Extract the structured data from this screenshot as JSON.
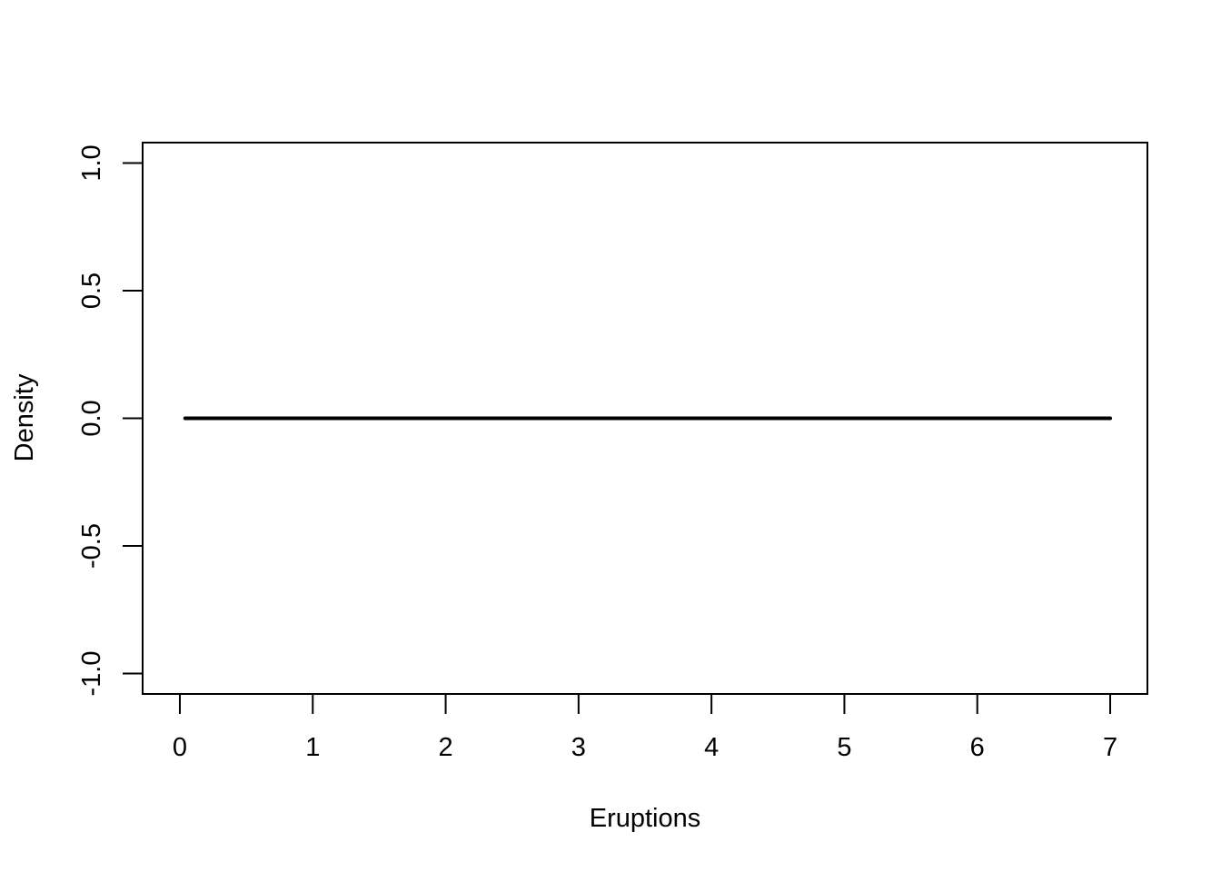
{
  "chart_data": {
    "type": "line",
    "title": "",
    "xlabel": "Eruptions",
    "ylabel": "Density",
    "xlim": [
      -0.28,
      7.28
    ],
    "ylim": [
      -1.08,
      1.08
    ],
    "x_ticks": [
      0,
      1,
      2,
      3,
      4,
      5,
      6,
      7
    ],
    "x_tick_labels": [
      "0",
      "1",
      "2",
      "3",
      "4",
      "5",
      "6",
      "7"
    ],
    "y_ticks": [
      -1.0,
      -0.5,
      0.0,
      0.5,
      1.0
    ],
    "y_tick_labels": [
      "-1.0",
      "-0.5",
      "0.0",
      "0.5",
      "1.0"
    ],
    "grid": false,
    "series": [
      {
        "x": [
          0.04,
          7.0
        ],
        "y": [
          0.0,
          0.0
        ],
        "color": "#000000"
      }
    ]
  }
}
